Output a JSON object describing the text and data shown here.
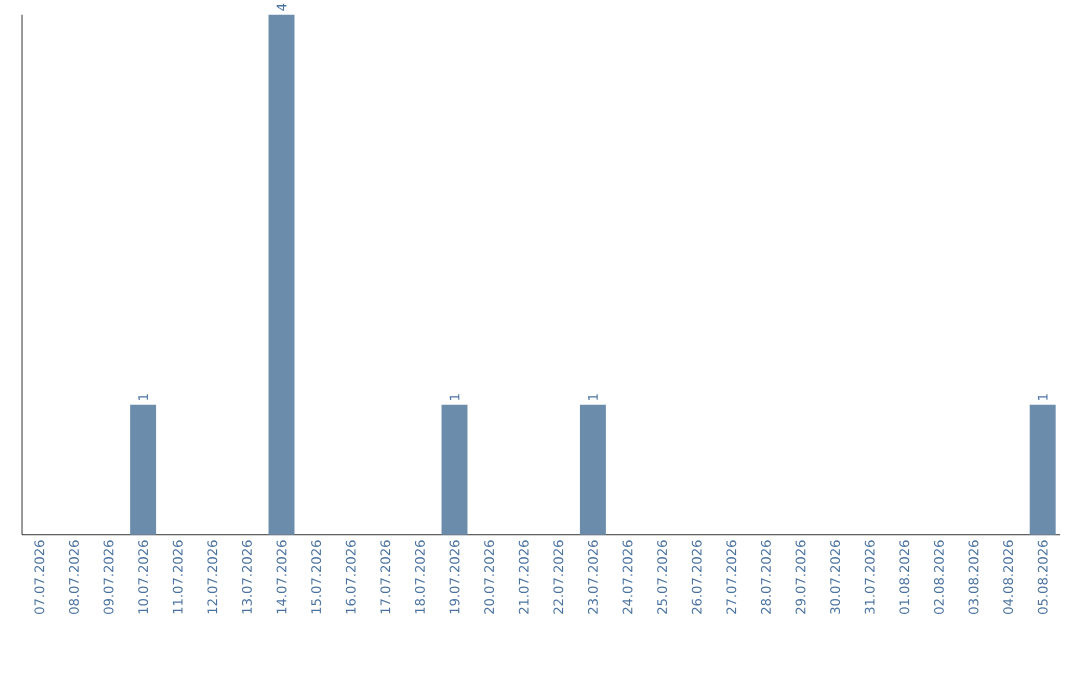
{
  "chart_data": {
    "type": "bar",
    "categories": [
      "07.07.2026",
      "08.07.2026",
      "09.07.2026",
      "10.07.2026",
      "11.07.2026",
      "12.07.2026",
      "13.07.2026",
      "14.07.2026",
      "15.07.2026",
      "16.07.2026",
      "17.07.2026",
      "18.07.2026",
      "19.07.2026",
      "20.07.2026",
      "21.07.2026",
      "22.07.2026",
      "23.07.2026",
      "24.07.2026",
      "25.07.2026",
      "26.07.2026",
      "27.07.2026",
      "28.07.2026",
      "29.07.2026",
      "30.07.2026",
      "31.07.2026",
      "01.08.2026",
      "02.08.2026",
      "03.08.2026",
      "04.08.2026",
      "05.08.2026"
    ],
    "values": [
      0,
      0,
      0,
      1,
      0,
      0,
      0,
      4,
      0,
      0,
      0,
      0,
      1,
      0,
      0,
      0,
      1,
      0,
      0,
      0,
      0,
      0,
      0,
      0,
      0,
      0,
      0,
      0,
      0,
      1
    ],
    "value_labels": [
      null,
      null,
      null,
      "1",
      null,
      null,
      null,
      "4",
      null,
      null,
      null,
      null,
      "1",
      null,
      null,
      null,
      "1",
      null,
      null,
      null,
      null,
      null,
      null,
      null,
      null,
      null,
      null,
      null,
      null,
      "1"
    ],
    "color": "#6b8cab"
  }
}
